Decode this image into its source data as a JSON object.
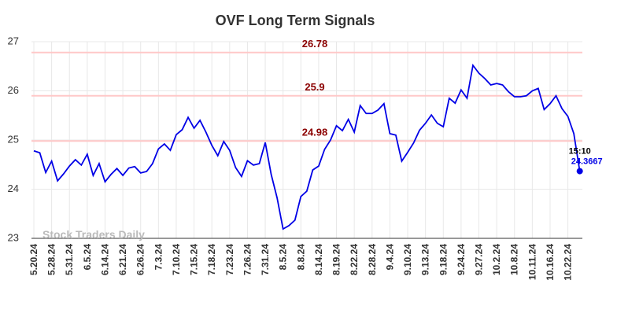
{
  "chart_data": {
    "type": "line",
    "title": "OVF Long Term Signals",
    "categories": [
      "5.20.24",
      null,
      null,
      "5.28.24",
      null,
      null,
      "5.31.24",
      null,
      null,
      "6.5.24",
      null,
      null,
      "6.14.24",
      null,
      null,
      "6.21.24",
      null,
      null,
      "6.26.24",
      null,
      null,
      "7.3.24",
      null,
      null,
      "7.10.24",
      null,
      null,
      "7.15.24",
      null,
      null,
      "7.18.24",
      null,
      null,
      "7.23.24",
      null,
      null,
      "7.26.24",
      null,
      null,
      "7.31.24",
      null,
      null,
      "8.5.24",
      null,
      null,
      "8.8.24",
      null,
      null,
      "8.14.24",
      null,
      null,
      "8.19.24",
      null,
      null,
      "8.22.24",
      null,
      null,
      "8.28.24",
      null,
      null,
      "9.4.24",
      null,
      null,
      "9.10.24",
      null,
      null,
      "9.13.24",
      null,
      null,
      "9.18.24",
      null,
      null,
      "9.24.24",
      null,
      null,
      "9.27.24",
      null,
      null,
      "10.2.24",
      null,
      null,
      "10.8.24",
      null,
      null,
      "10.11.24",
      null,
      null,
      "10.16.24",
      null,
      null,
      "10.22.24",
      null,
      null
    ],
    "series": [
      {
        "name": "OVF",
        "color": "#0000e6",
        "values": [
          24.78,
          24.74,
          24.34,
          24.57,
          24.17,
          24.31,
          24.47,
          24.6,
          24.49,
          24.71,
          24.28,
          24.52,
          24.15,
          24.3,
          24.42,
          24.28,
          24.43,
          24.46,
          24.33,
          24.36,
          24.52,
          24.82,
          24.92,
          24.79,
          25.11,
          25.21,
          25.46,
          25.24,
          25.4,
          25.16,
          24.89,
          24.68,
          24.97,
          24.79,
          24.44,
          24.26,
          24.58,
          24.49,
          24.52,
          24.95,
          24.3,
          23.82,
          23.19,
          23.26,
          23.37,
          23.85,
          23.96,
          24.39,
          24.47,
          24.81,
          25.0,
          25.29,
          25.19,
          25.42,
          25.16,
          25.7,
          25.54,
          25.54,
          25.61,
          25.74,
          25.13,
          25.1,
          24.57,
          24.75,
          24.94,
          25.2,
          25.34,
          25.51,
          25.34,
          25.27,
          25.85,
          25.75,
          26.02,
          25.85,
          26.52,
          26.36,
          26.25,
          26.12,
          26.15,
          26.12,
          25.98,
          25.88,
          25.88,
          25.9,
          26.0,
          26.05,
          25.62,
          25.74,
          25.9,
          25.64,
          25.48,
          25.13,
          24.3667
        ]
      }
    ],
    "hlines": [
      26.78,
      25.9,
      24.98
    ],
    "hline_color": "#ffc8c8",
    "hline_label_color": "#8b0000",
    "last_time": "15:10",
    "watermark": "Stock Traders Daily",
    "ylim": [
      23,
      27
    ],
    "yticks": [
      23,
      24,
      25,
      26,
      27
    ],
    "grid": true
  }
}
